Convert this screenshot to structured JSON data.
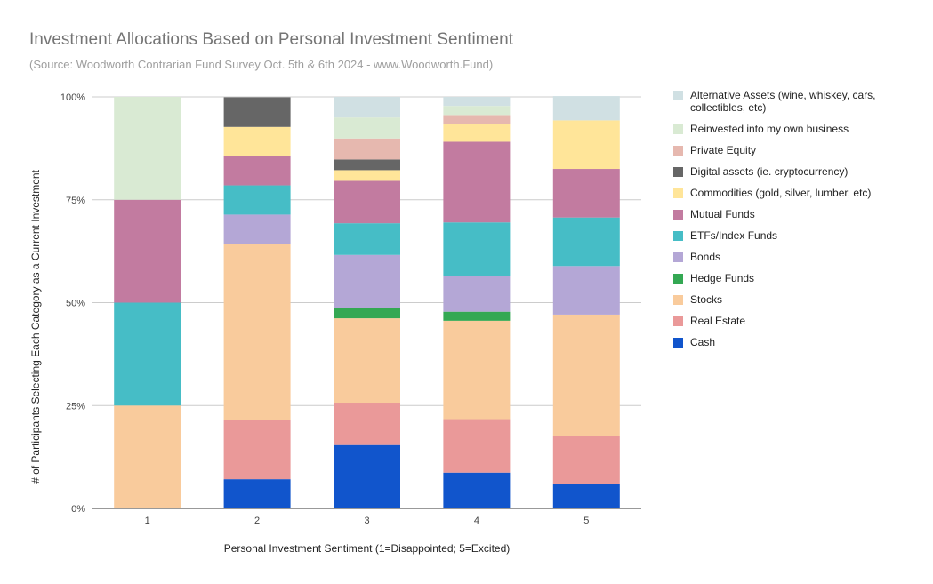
{
  "chart_data": {
    "type": "bar",
    "stacked": true,
    "percent": true,
    "title": "Investment Allocations Based on Personal Investment Sentiment",
    "subtitle": "(Source: Woodworth Contrarian Fund Survey Oct. 5th & 6th 2024 - www.Woodworth.Fund)",
    "xlabel": "Personal Investment Sentiment (1=Disappointed; 5=Excited)",
    "ylabel": "# of Participants Selecting Each Category as a Current Investment",
    "categories": [
      "1",
      "2",
      "3",
      "4",
      "5"
    ],
    "y_ticks": [
      "0%",
      "25%",
      "50%",
      "75%",
      "100%"
    ],
    "ylim": [
      0,
      100
    ],
    "series": [
      {
        "name": "Cash",
        "color": "#1155cc",
        "values": [
          0,
          7.1,
          15.4,
          8.7,
          5.9
        ]
      },
      {
        "name": "Real Estate",
        "color": "#ea9999",
        "values": [
          0,
          14.3,
          10.3,
          13.0,
          11.8
        ]
      },
      {
        "name": "Stocks",
        "color": "#f9cb9c",
        "values": [
          25,
          42.9,
          20.5,
          23.9,
          29.4
        ]
      },
      {
        "name": "Hedge Funds",
        "color": "#34a853",
        "values": [
          0,
          0,
          2.6,
          2.2,
          0
        ]
      },
      {
        "name": "Bonds",
        "color": "#b4a7d6",
        "values": [
          0,
          7.1,
          12.8,
          8.7,
          11.8
        ]
      },
      {
        "name": "ETFs/Index Funds",
        "color": "#46bdc6",
        "values": [
          25,
          7.1,
          7.7,
          13.0,
          11.8
        ]
      },
      {
        "name": "Mutual Funds",
        "color": "#c27ba0",
        "values": [
          25,
          7.1,
          10.3,
          19.6,
          11.8
        ]
      },
      {
        "name": "Commodities (gold, silver, lumber, etc)",
        "color": "#ffe599",
        "values": [
          0,
          7.1,
          2.6,
          4.3,
          11.8
        ]
      },
      {
        "name": "Digital assets (ie. cryptocurrency)",
        "color": "#666666",
        "values": [
          0,
          7.2,
          2.6,
          0,
          0
        ]
      },
      {
        "name": "Private Equity",
        "color": "#e6b8af",
        "values": [
          0,
          0,
          5.1,
          2.2,
          0
        ]
      },
      {
        "name": "Reinvested into my own business",
        "color": "#d9ead3",
        "values": [
          25,
          0,
          5.1,
          2.2,
          0
        ]
      },
      {
        "name": "Alternative Assets (wine, whiskey, cars, collectibles, etc)",
        "color": "#d0e0e3",
        "values": [
          0,
          0,
          5.0,
          2.2,
          5.9
        ]
      }
    ],
    "legend_position": "right"
  }
}
